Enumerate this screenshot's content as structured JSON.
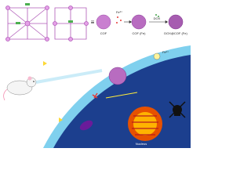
{
  "synthesis": [
    {
      "label": "COF"
    },
    {
      "label": "Fe³⁺"
    },
    {
      "label": "COF (Fe)"
    },
    {
      "label": "DOX"
    },
    {
      "label": "DOX@COF (Fe)"
    }
  ],
  "cell": {
    "ion_label": "Fe²⁺",
    "nucleus_label": "Nucleus"
  }
}
